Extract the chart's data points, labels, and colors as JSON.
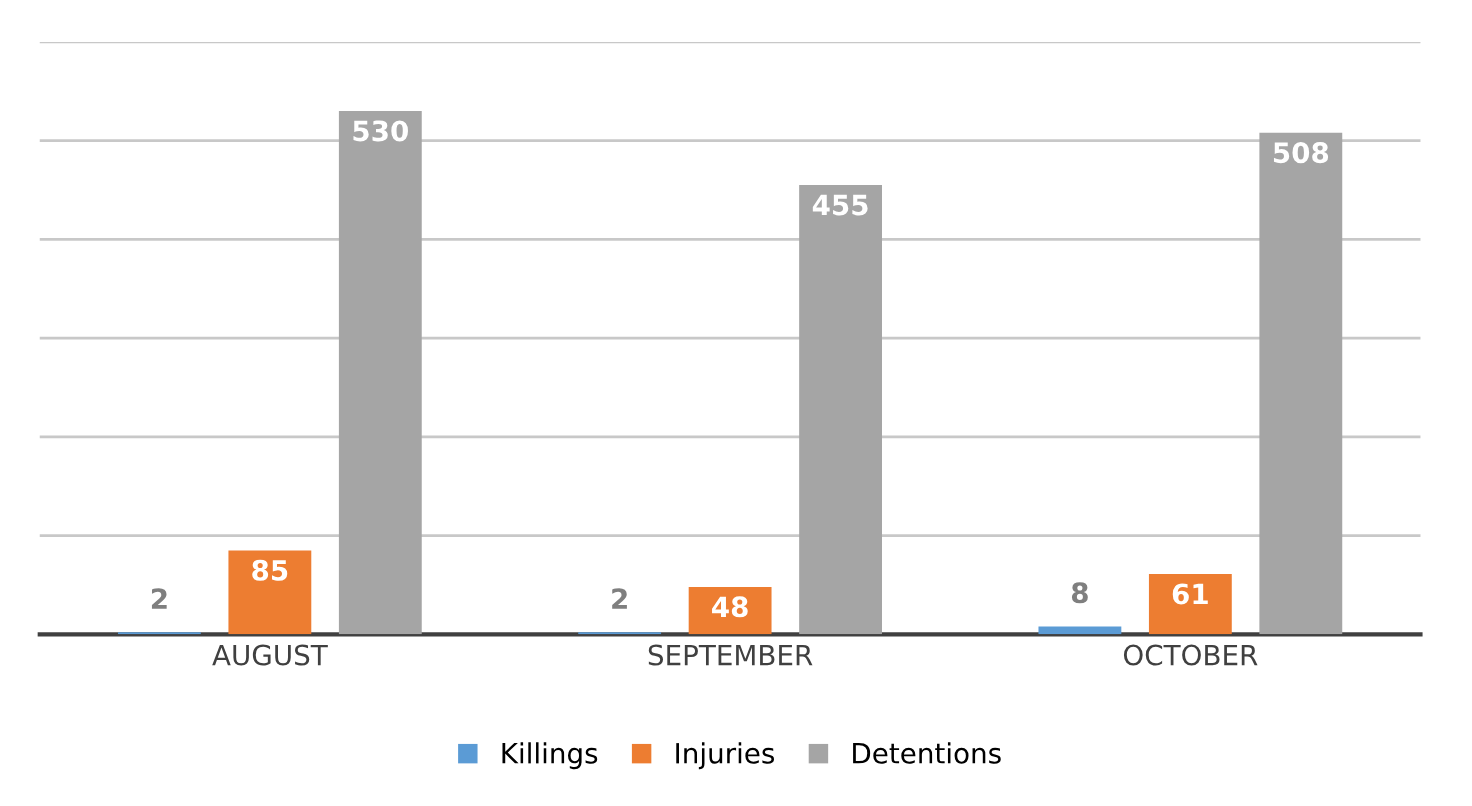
{
  "chart_data": {
    "type": "bar",
    "categories": [
      "AUGUST",
      "SEPTEMBER",
      "OCTOBER"
    ],
    "series": [
      {
        "name": "Killings",
        "color": "#5b9bd5",
        "values": [
          2,
          2,
          8
        ]
      },
      {
        "name": "Injuries",
        "color": "#ed7d31",
        "values": [
          85,
          48,
          61
        ]
      },
      {
        "name": "Detentions",
        "color": "#a5a5a5",
        "values": [
          530,
          455,
          508
        ]
      }
    ],
    "ylim": [
      0,
      600
    ],
    "yticks": [
      {
        "value": 0,
        "label": null
      },
      {
        "value": 100,
        "label": null
      },
      {
        "value": 200,
        "label": null
      },
      {
        "value": 300,
        "label": null
      },
      {
        "value": 400,
        "label": null
      },
      {
        "value": 500,
        "label": null
      },
      {
        "value": 600,
        "label": null
      }
    ],
    "tick_labels": "x",
    "grid": "y",
    "legend": "bottom",
    "data_labels": true
  }
}
